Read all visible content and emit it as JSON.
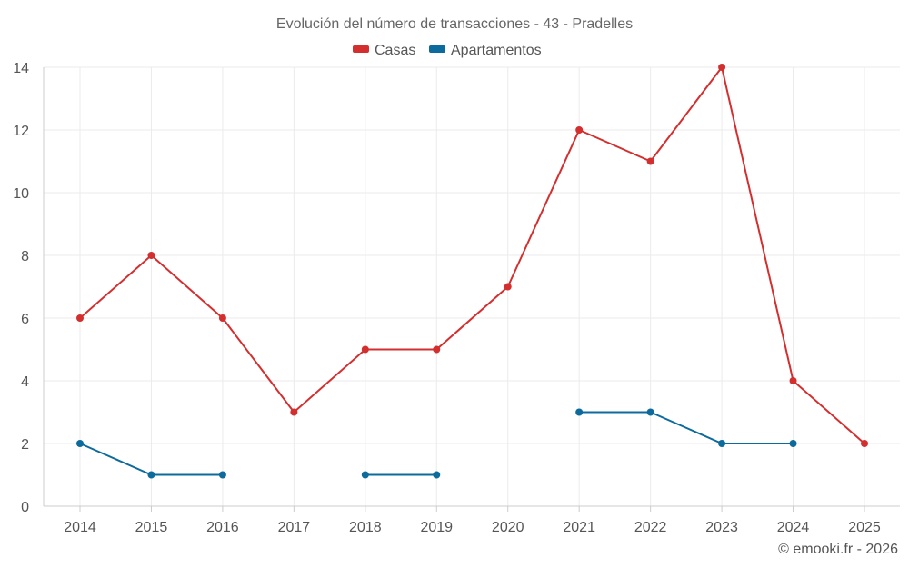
{
  "chart_data": {
    "type": "line",
    "title": "Evolución del número de transacciones - 43 - Pradelles",
    "categories": [
      "2014",
      "2015",
      "2016",
      "2017",
      "2018",
      "2019",
      "2020",
      "2021",
      "2022",
      "2023",
      "2024",
      "2025"
    ],
    "series": [
      {
        "name": "Casas",
        "color": "#d32f2f",
        "values": [
          6,
          8,
          6,
          3,
          5,
          5,
          7,
          12,
          11,
          14,
          4,
          2
        ]
      },
      {
        "name": "Apartamentos",
        "color": "#0d6a9c",
        "values": [
          2,
          1,
          1,
          null,
          1,
          1,
          null,
          3,
          3,
          2,
          2,
          null
        ]
      }
    ],
    "ylim": [
      0,
      14
    ],
    "yticks": [
      0,
      2,
      4,
      6,
      8,
      10,
      12,
      14
    ],
    "grid": true,
    "legend": "top-center",
    "xlabel": "",
    "ylabel": ""
  },
  "credit": "© emooki.fr - 2026"
}
